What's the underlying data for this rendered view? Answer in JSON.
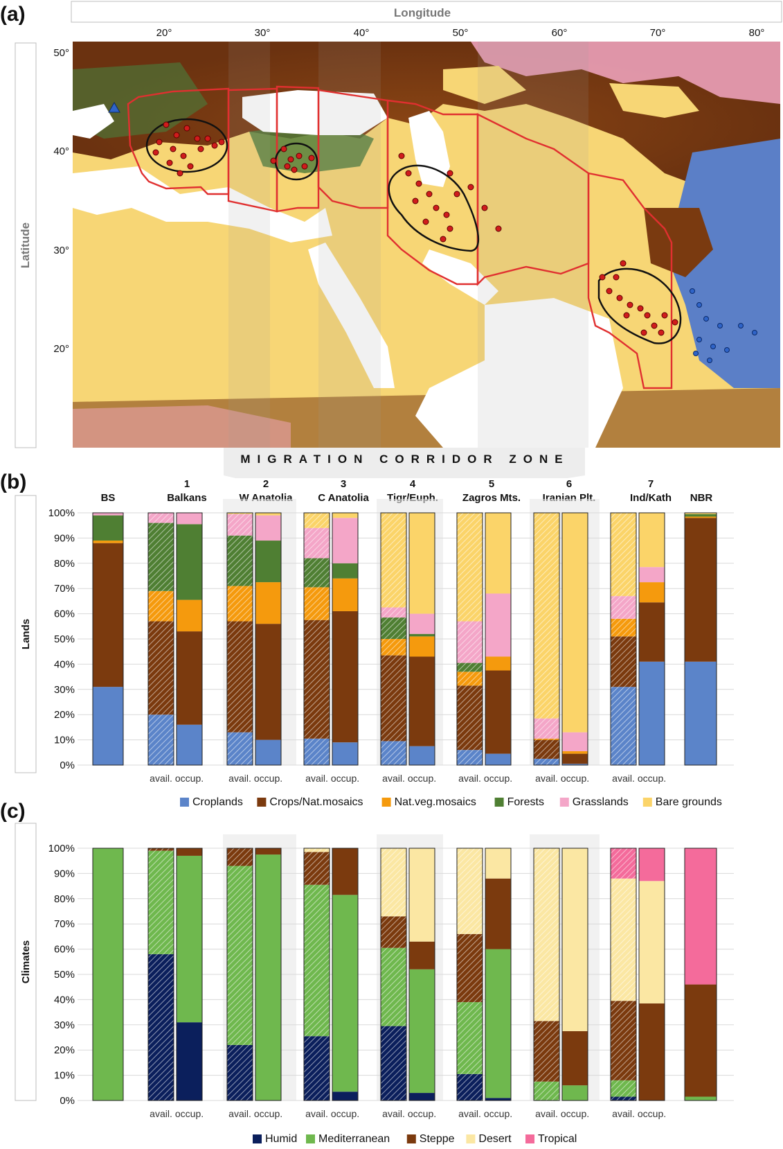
{
  "panel_labels": [
    "(a)",
    "(b)",
    "(c)"
  ],
  "map": {
    "top_axis_title": "Longitude",
    "left_axis_title": "Latitude",
    "lon_ticks": [
      "20°",
      "30°",
      "40°",
      "50°",
      "60°",
      "70°",
      "80°"
    ],
    "lat_ticks": [
      "50°",
      "40°",
      "30°",
      "20°"
    ],
    "colors": {
      "desert": "#f7d675",
      "sea": "#ffffff",
      "steppe": "#7a3a10",
      "forest": "#4c7a3a",
      "grass": "#f3a7c3",
      "crops": "#5b7fc7",
      "outline": "#e03030",
      "range": "#111111",
      "point": "#d01c1c"
    }
  },
  "corridor_title": "MIGRATION CORRIDOR ZONE",
  "regions": [
    {
      "number": "",
      "name": "BS"
    },
    {
      "number": "1",
      "name": "Balkans"
    },
    {
      "number": "2",
      "name": "W Anatolia"
    },
    {
      "number": "3",
      "name": "C Anatolia"
    },
    {
      "number": "4",
      "name": "Tigr/Euph."
    },
    {
      "number": "5",
      "name": "Zagros Mts."
    },
    {
      "number": "6",
      "name": "Iranian Plt."
    },
    {
      "number": "7",
      "name": "Ind/Kath"
    },
    {
      "number": "",
      "name": "NBR"
    }
  ],
  "pair_labels": {
    "avail": "avail.",
    "occup": "occup."
  },
  "chart_data": [
    {
      "type": "bar",
      "stacked": true,
      "panel": "(b)",
      "ylabel": "Lands",
      "ylim": [
        0,
        100
      ],
      "y_ticks": [
        "0%",
        "10%",
        "20%",
        "30%",
        "40%",
        "50%",
        "60%",
        "70%",
        "80%",
        "90%",
        "100%"
      ],
      "categories": [
        "BS",
        "1 Balkans avail.",
        "1 Balkans occup.",
        "2 W Anatolia avail.",
        "2 W Anatolia occup.",
        "3 C Anatolia avail.",
        "3 C Anatolia occup.",
        "4 Tigr/Euph. avail.",
        "4 Tigr/Euph. occup.",
        "5 Zagros Mts. avail.",
        "5 Zagros Mts. occup.",
        "6 Iranian Plt. avail.",
        "6 Iranian Plt. occup.",
        "7 Ind/Kath avail.",
        "7 Ind/Kath occup.",
        "NBR"
      ],
      "hatched": [
        false,
        true,
        false,
        true,
        false,
        true,
        false,
        true,
        false,
        true,
        false,
        true,
        false,
        true,
        false,
        false
      ],
      "series": [
        {
          "name": "Croplands",
          "color": "#5b84c9",
          "values": [
            31,
            20,
            16,
            13,
            10,
            10.5,
            9,
            9.5,
            7.5,
            6,
            4.5,
            2.5,
            0.5,
            31,
            41,
            41
          ]
        },
        {
          "name": "Crops/Nat.mosaics",
          "color": "#7b3a0e",
          "values": [
            57,
            37,
            37,
            44,
            46,
            47,
            52,
            34,
            35.5,
            25.5,
            33,
            7.5,
            4,
            20,
            23.5,
            57
          ]
        },
        {
          "name": "Nat.veg.mosaics",
          "color": "#f59a0d",
          "values": [
            1,
            12,
            12.5,
            14,
            16.5,
            13,
            13,
            6.5,
            8,
            5.5,
            5.5,
            0.5,
            1,
            7,
            8,
            0.5
          ]
        },
        {
          "name": "Forests",
          "color": "#4f7f33",
          "values": [
            10,
            27,
            30,
            20,
            16.5,
            11.5,
            6,
            8.5,
            1,
            3.5,
            0,
            0,
            0,
            0,
            0,
            1
          ]
        },
        {
          "name": "Grasslands",
          "color": "#f4a6c8",
          "values": [
            1,
            4,
            4.5,
            8.5,
            10,
            12,
            18,
            4,
            8,
            16.5,
            25,
            8,
            7.5,
            9,
            6,
            0
          ]
        },
        {
          "name": "Bare grounds",
          "color": "#fbd469",
          "values": [
            0,
            0,
            0,
            0.5,
            1,
            6,
            2,
            37.5,
            40,
            43,
            32,
            81.5,
            87,
            33,
            21.5,
            0.5
          ]
        }
      ]
    },
    {
      "type": "bar",
      "stacked": true,
      "panel": "(c)",
      "ylabel": "Climates",
      "ylim": [
        0,
        100
      ],
      "y_ticks": [
        "0%",
        "10%",
        "20%",
        "30%",
        "40%",
        "50%",
        "60%",
        "70%",
        "80%",
        "90%",
        "100%"
      ],
      "categories": [
        "BS",
        "1 Balkans avail.",
        "1 Balkans occup.",
        "2 W Anatolia avail.",
        "2 W Anatolia occup.",
        "3 C Anatolia avail.",
        "3 C Anatolia occup.",
        "4 Tigr/Euph. avail.",
        "4 Tigr/Euph. occup.",
        "5 Zagros Mts. avail.",
        "5 Zagros Mts. occup.",
        "6 Iranian Plt. avail.",
        "6 Iranian Plt. occup.",
        "7 Ind/Kath avail.",
        "7 Ind/Kath occup.",
        "NBR"
      ],
      "hatched": [
        false,
        true,
        false,
        true,
        false,
        true,
        false,
        true,
        false,
        true,
        false,
        true,
        false,
        true,
        false,
        false
      ],
      "series": [
        {
          "name": "Humid",
          "color": "#0b1f5c",
          "values": [
            0,
            58,
            31,
            22,
            0,
            25.5,
            3.5,
            29.5,
            3,
            10.5,
            1,
            0,
            0,
            1.5,
            0,
            0
          ]
        },
        {
          "name": "Mediterranean",
          "color": "#6fb84e",
          "values": [
            100,
            41,
            66,
            71,
            97.5,
            60,
            78,
            31,
            49,
            28.5,
            59,
            7.5,
            6,
            6.5,
            0,
            1.5
          ]
        },
        {
          "name": "Steppe",
          "color": "#7b3a0e",
          "values": [
            0,
            1,
            3,
            7,
            2.5,
            13,
            18.5,
            12.5,
            11,
            27,
            28,
            24,
            21.5,
            31.5,
            38.5,
            44.5
          ]
        },
        {
          "name": "Desert",
          "color": "#fbe7a3",
          "values": [
            0,
            0,
            0,
            0,
            0,
            1.5,
            0,
            27,
            37,
            34,
            12,
            68.5,
            72.5,
            48.5,
            48.5,
            0
          ]
        },
        {
          "name": "Tropical",
          "color": "#f46b9b",
          "values": [
            0,
            0,
            0,
            0,
            0,
            0,
            0,
            0,
            0,
            0,
            0,
            0,
            0,
            12,
            13,
            54
          ]
        }
      ]
    }
  ]
}
